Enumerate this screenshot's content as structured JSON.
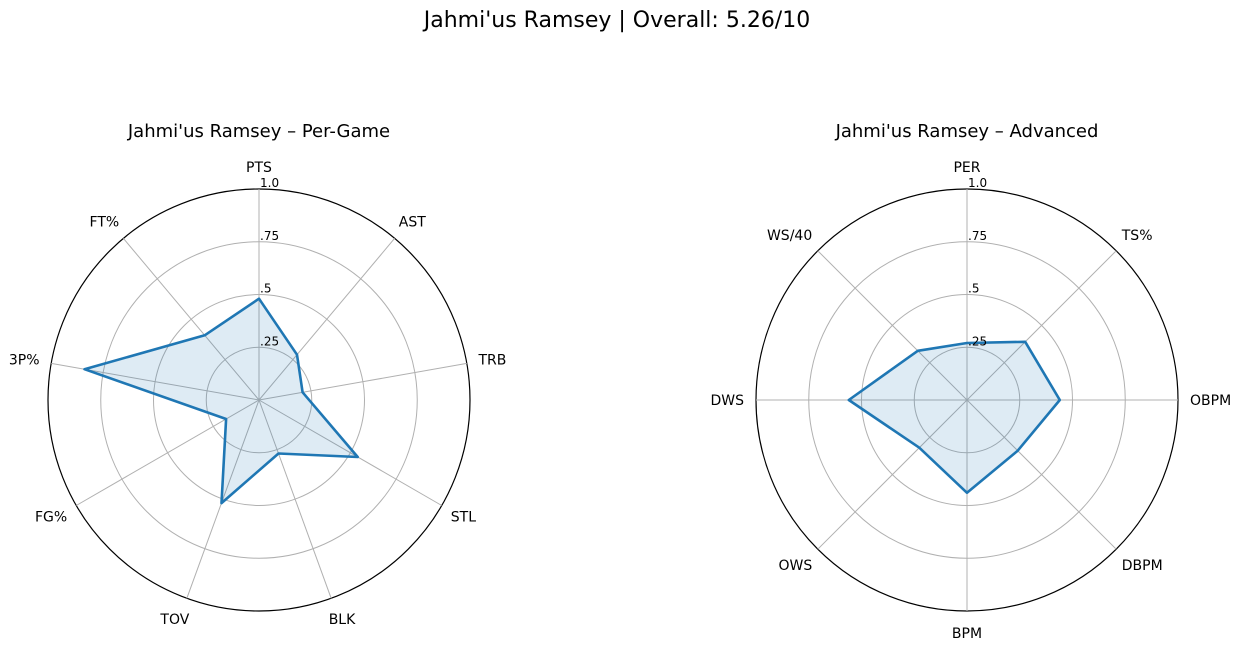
{
  "figure": {
    "suptitle": "Jahmi'us Ramsey | Overall: 5.26/10"
  },
  "chart_data": [
    {
      "type": "radar",
      "title": "Jahmi'us Ramsey – Per-Game",
      "categories": [
        "PTS",
        "AST",
        "TRB",
        "STL",
        "BLK",
        "TOV",
        "FG%",
        "3P%",
        "FT%"
      ],
      "values": [
        0.48,
        0.28,
        0.21,
        0.54,
        0.27,
        0.52,
        0.18,
        0.84,
        0.4
      ],
      "rlim": [
        0,
        1
      ],
      "rticks": [
        0.25,
        0.5,
        0.75,
        1.0
      ],
      "rtick_labels": [
        ".25",
        ".5",
        ".75",
        "1.0"
      ],
      "grid": true,
      "colors": {
        "line": "#1f77b4",
        "fill": "#1f77b4"
      }
    },
    {
      "type": "radar",
      "title": "Jahmi'us Ramsey – Advanced",
      "categories": [
        "PER",
        "TS%",
        "OBPM",
        "DBPM",
        "BPM",
        "OWS",
        "DWS",
        "WS/40"
      ],
      "values": [
        0.27,
        0.39,
        0.44,
        0.34,
        0.44,
        0.32,
        0.56,
        0.33
      ],
      "rlim": [
        0,
        1
      ],
      "rticks": [
        0.25,
        0.5,
        0.75,
        1.0
      ],
      "rtick_labels": [
        ".25",
        ".5",
        ".75",
        "1.0"
      ],
      "grid": true,
      "colors": {
        "line": "#1f77b4",
        "fill": "#1f77b4"
      }
    }
  ]
}
